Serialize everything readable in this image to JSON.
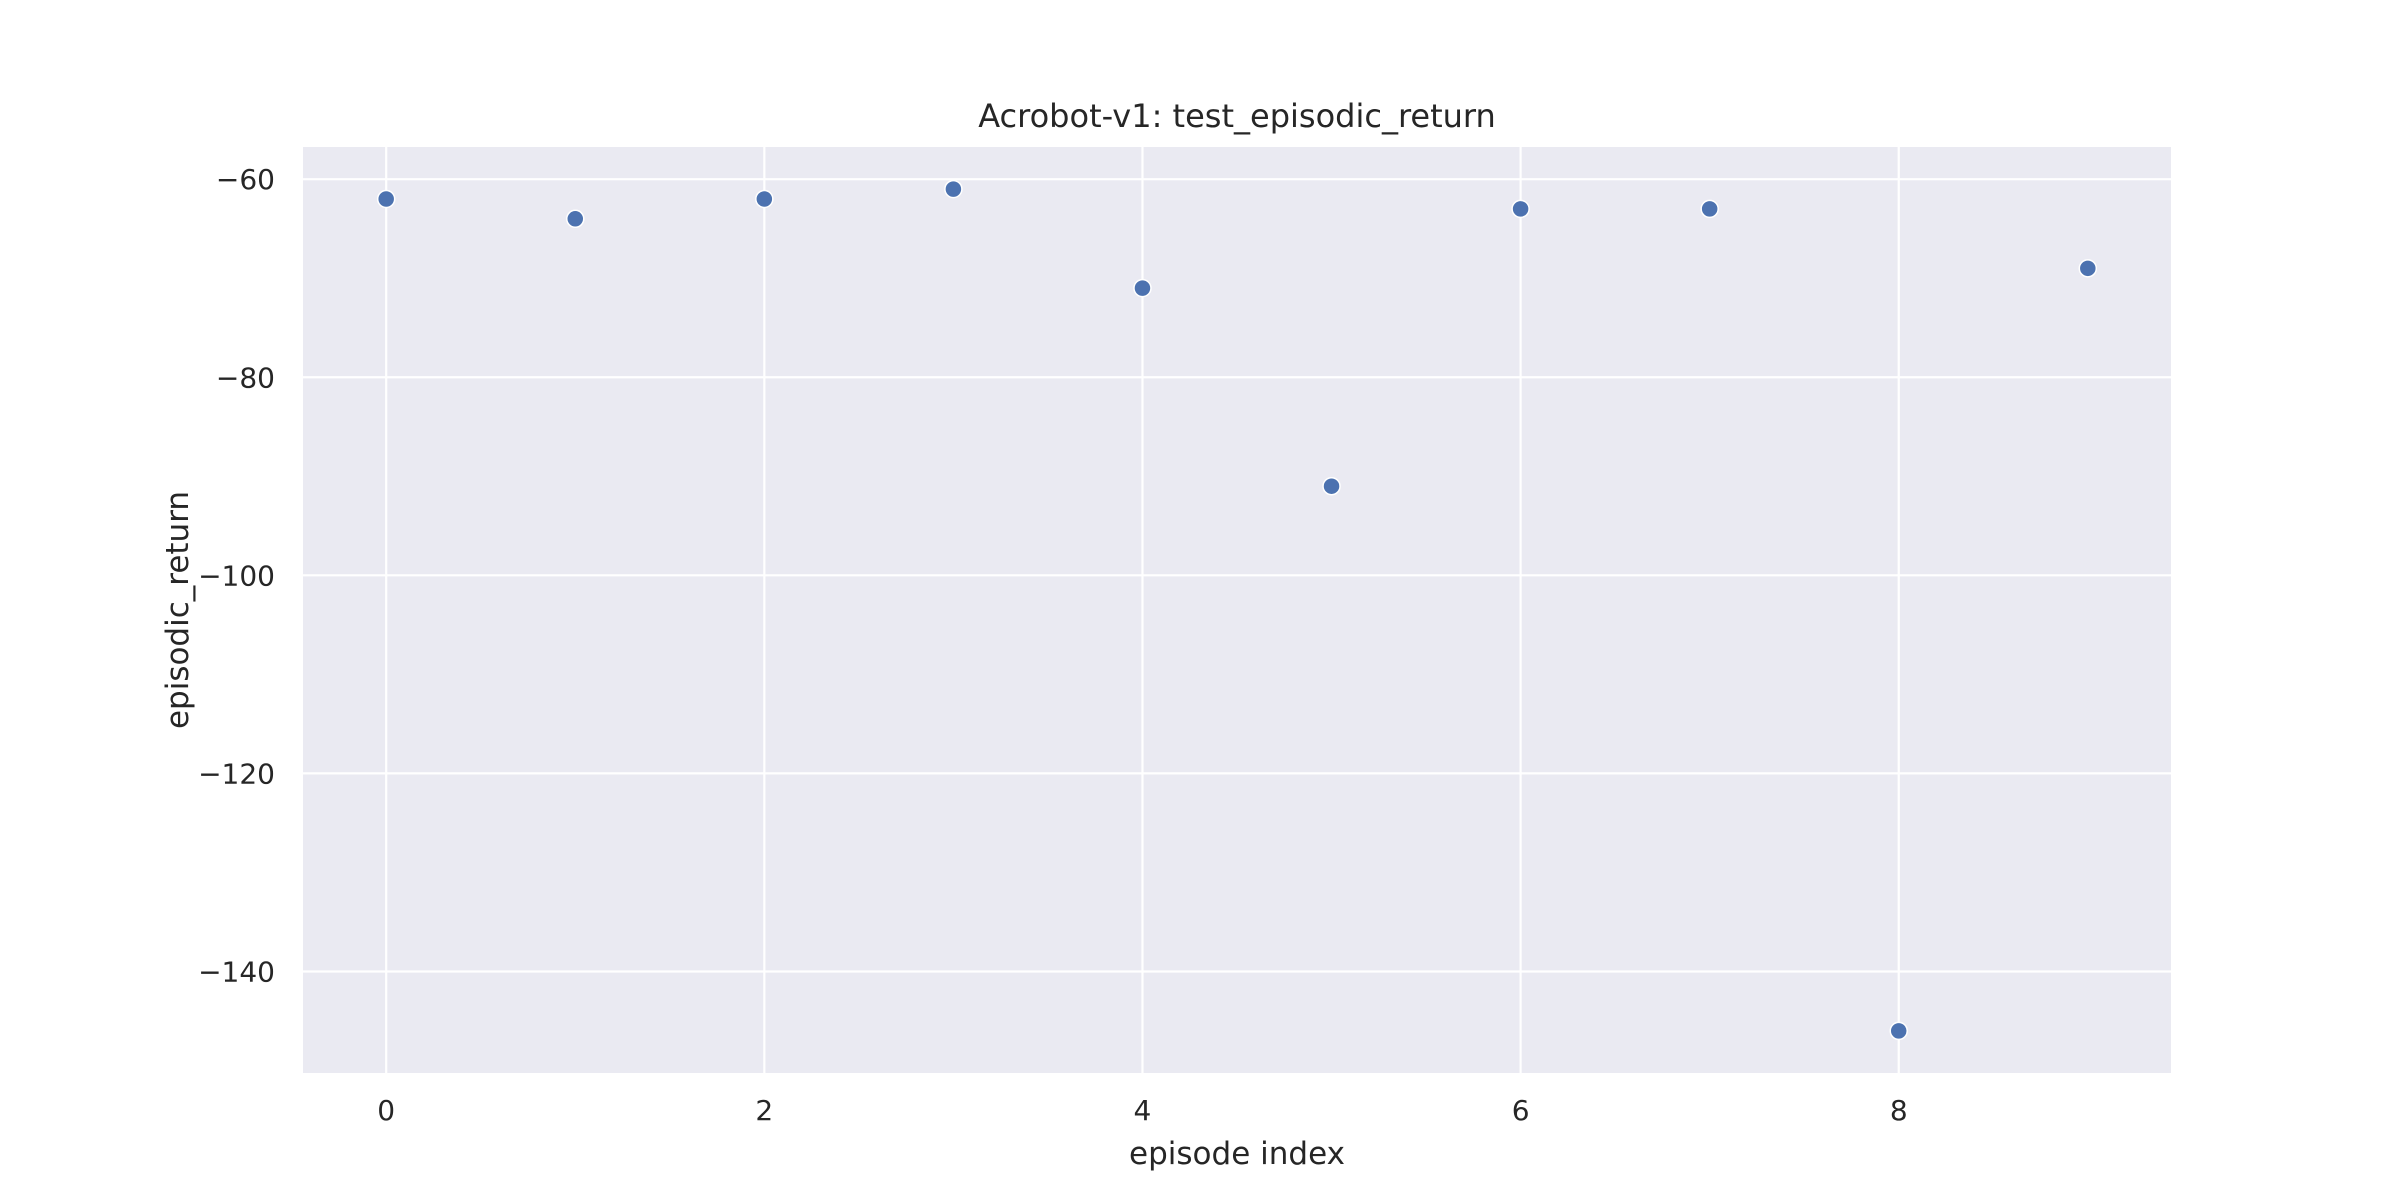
{
  "chart_data": {
    "type": "scatter",
    "title": "Acrobot-v1: test_episodic_return",
    "xlabel": "episode index",
    "ylabel": "episodic_return",
    "x": [
      0,
      1,
      2,
      3,
      4,
      5,
      6,
      7,
      8,
      9
    ],
    "y": [
      -62,
      -64,
      -62,
      -61,
      -71,
      -91,
      -63,
      -63,
      -146,
      -69
    ],
    "xlim": [
      -0.44,
      9.44
    ],
    "ylim": [
      -150.25,
      -56.75
    ],
    "xticks": [
      0,
      2,
      4,
      6,
      8
    ],
    "yticks": [
      -60,
      -80,
      -100,
      -120,
      -140
    ],
    "xtick_labels": [
      "0",
      "2",
      "4",
      "6",
      "8"
    ],
    "ytick_labels": [
      "−60",
      "−80",
      "−100",
      "−120",
      "−140"
    ],
    "grid": true,
    "colors": {
      "background": "#eaeaf2",
      "grid": "#ffffff",
      "marker": "#4c72b0",
      "marker_edge": "#ffffff"
    }
  }
}
